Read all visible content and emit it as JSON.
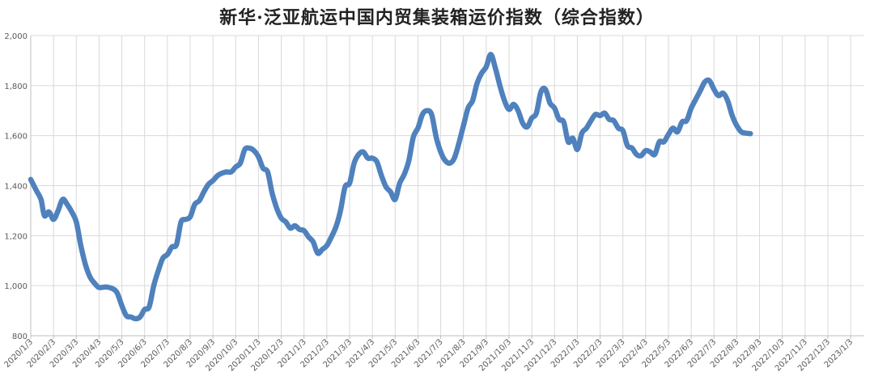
{
  "chart_data": {
    "type": "line",
    "title": "新华·泛亚航运中国内贸集装箱运价指数（综合指数）",
    "xlabel": "",
    "ylabel": "",
    "ylim": [
      800,
      2000
    ],
    "yticks": [
      "800",
      "1,000",
      "1,200",
      "1,400",
      "1,600",
      "1,800",
      "2,000"
    ],
    "grid": true,
    "legend": "none",
    "line_color": "#4F81BD",
    "x_tick_labels": [
      "2020/1/3",
      "2020/2/3",
      "2020/3/3",
      "2020/4/3",
      "2020/5/3",
      "2020/6/3",
      "2020/7/3",
      "2020/8/3",
      "2020/9/3",
      "2020/10/3",
      "2020/11/3",
      "2020/12/3",
      "2021/1/3",
      "2021/2/3",
      "2021/3/3",
      "2021/4/3",
      "2021/5/3",
      "2021/6/3",
      "2021/7/3",
      "2021/8/3",
      "2021/9/3",
      "2021/10/3",
      "2021/11/3",
      "2021/12/3",
      "2022/1/3",
      "2022/2/3",
      "2022/3/3",
      "2022/4/3",
      "2022/5/3",
      "2022/6/3",
      "2022/7/3",
      "2022/8/3",
      "2022/9/3",
      "2022/10/3",
      "2022/11/3",
      "2022/12/3",
      "2023/1/3"
    ],
    "series": [
      {
        "values": [
          [
            0,
            1425
          ],
          [
            0.25,
            1380
          ],
          [
            0.45,
            1345
          ],
          [
            0.6,
            1280
          ],
          [
            0.8,
            1295
          ],
          [
            1.0,
            1265
          ],
          [
            1.2,
            1300
          ],
          [
            1.4,
            1345
          ],
          [
            1.6,
            1325
          ],
          [
            1.8,
            1295
          ],
          [
            2.0,
            1255
          ],
          [
            2.2,
            1160
          ],
          [
            2.4,
            1085
          ],
          [
            2.6,
            1035
          ],
          [
            2.8,
            1010
          ],
          [
            3.0,
            993
          ],
          [
            3.3,
            995
          ],
          [
            3.6,
            988
          ],
          [
            3.8,
            970
          ],
          [
            4.0,
            920
          ],
          [
            4.2,
            880
          ],
          [
            4.4,
            875
          ],
          [
            4.6,
            868
          ],
          [
            4.8,
            875
          ],
          [
            5.0,
            905
          ],
          [
            5.2,
            915
          ],
          [
            5.4,
            1000
          ],
          [
            5.6,
            1060
          ],
          [
            5.8,
            1110
          ],
          [
            6.0,
            1125
          ],
          [
            6.2,
            1155
          ],
          [
            6.4,
            1165
          ],
          [
            6.6,
            1255
          ],
          [
            6.8,
            1265
          ],
          [
            7.0,
            1275
          ],
          [
            7.2,
            1325
          ],
          [
            7.4,
            1340
          ],
          [
            7.6,
            1375
          ],
          [
            7.8,
            1405
          ],
          [
            8.0,
            1420
          ],
          [
            8.2,
            1440
          ],
          [
            8.4,
            1450
          ],
          [
            8.6,
            1455
          ],
          [
            8.8,
            1455
          ],
          [
            9.0,
            1475
          ],
          [
            9.2,
            1490
          ],
          [
            9.4,
            1545
          ],
          [
            9.6,
            1550
          ],
          [
            9.8,
            1540
          ],
          [
            10.0,
            1515
          ],
          [
            10.2,
            1470
          ],
          [
            10.4,
            1455
          ],
          [
            10.6,
            1370
          ],
          [
            10.8,
            1310
          ],
          [
            11.0,
            1270
          ],
          [
            11.2,
            1255
          ],
          [
            11.4,
            1230
          ],
          [
            11.6,
            1240
          ],
          [
            11.8,
            1225
          ],
          [
            12.0,
            1220
          ],
          [
            12.2,
            1195
          ],
          [
            12.4,
            1175
          ],
          [
            12.6,
            1130
          ],
          [
            12.8,
            1145
          ],
          [
            13.0,
            1160
          ],
          [
            13.2,
            1195
          ],
          [
            13.4,
            1235
          ],
          [
            13.6,
            1300
          ],
          [
            13.8,
            1395
          ],
          [
            14.0,
            1410
          ],
          [
            14.2,
            1490
          ],
          [
            14.4,
            1525
          ],
          [
            14.6,
            1535
          ],
          [
            14.8,
            1510
          ],
          [
            15.0,
            1510
          ],
          [
            15.2,
            1495
          ],
          [
            15.4,
            1440
          ],
          [
            15.6,
            1395
          ],
          [
            15.8,
            1375
          ],
          [
            16.0,
            1345
          ],
          [
            16.2,
            1410
          ],
          [
            16.4,
            1445
          ],
          [
            16.6,
            1500
          ],
          [
            16.8,
            1595
          ],
          [
            17.0,
            1630
          ],
          [
            17.2,
            1685
          ],
          [
            17.4,
            1700
          ],
          [
            17.6,
            1685
          ],
          [
            17.8,
            1595
          ],
          [
            18.0,
            1535
          ],
          [
            18.2,
            1500
          ],
          [
            18.4,
            1490
          ],
          [
            18.6,
            1510
          ],
          [
            18.8,
            1570
          ],
          [
            19.0,
            1640
          ],
          [
            19.2,
            1710
          ],
          [
            19.4,
            1740
          ],
          [
            19.6,
            1810
          ],
          [
            19.8,
            1850
          ],
          [
            20.0,
            1875
          ],
          [
            20.2,
            1925
          ],
          [
            20.4,
            1870
          ],
          [
            20.6,
            1800
          ],
          [
            20.8,
            1740
          ],
          [
            21.0,
            1705
          ],
          [
            21.2,
            1725
          ],
          [
            21.4,
            1700
          ],
          [
            21.6,
            1650
          ],
          [
            21.8,
            1635
          ],
          [
            22.0,
            1670
          ],
          [
            22.2,
            1690
          ],
          [
            22.4,
            1775
          ],
          [
            22.6,
            1785
          ],
          [
            22.8,
            1730
          ],
          [
            23.0,
            1710
          ],
          [
            23.2,
            1665
          ],
          [
            23.4,
            1655
          ],
          [
            23.6,
            1575
          ],
          [
            23.8,
            1590
          ],
          [
            24.0,
            1545
          ],
          [
            24.2,
            1610
          ],
          [
            24.4,
            1630
          ],
          [
            24.6,
            1660
          ],
          [
            24.8,
            1685
          ],
          [
            25.0,
            1680
          ],
          [
            25.2,
            1690
          ],
          [
            25.4,
            1665
          ],
          [
            25.6,
            1660
          ],
          [
            25.8,
            1630
          ],
          [
            26.0,
            1620
          ],
          [
            26.2,
            1560
          ],
          [
            26.4,
            1550
          ],
          [
            26.6,
            1525
          ],
          [
            26.8,
            1520
          ],
          [
            27.0,
            1540
          ],
          [
            27.2,
            1535
          ],
          [
            27.4,
            1525
          ],
          [
            27.6,
            1575
          ],
          [
            27.8,
            1575
          ],
          [
            28.0,
            1605
          ],
          [
            28.2,
            1630
          ],
          [
            28.4,
            1615
          ],
          [
            28.6,
            1655
          ],
          [
            28.8,
            1660
          ],
          [
            29.0,
            1710
          ],
          [
            29.2,
            1745
          ],
          [
            29.4,
            1780
          ],
          [
            29.6,
            1815
          ],
          [
            29.8,
            1820
          ],
          [
            30.0,
            1785
          ],
          [
            30.2,
            1760
          ],
          [
            30.4,
            1770
          ],
          [
            30.6,
            1740
          ],
          [
            30.8,
            1680
          ],
          [
            31.0,
            1640
          ],
          [
            31.2,
            1615
          ],
          [
            31.4,
            1610
          ],
          [
            31.6,
            1608
          ]
        ]
      }
    ]
  }
}
